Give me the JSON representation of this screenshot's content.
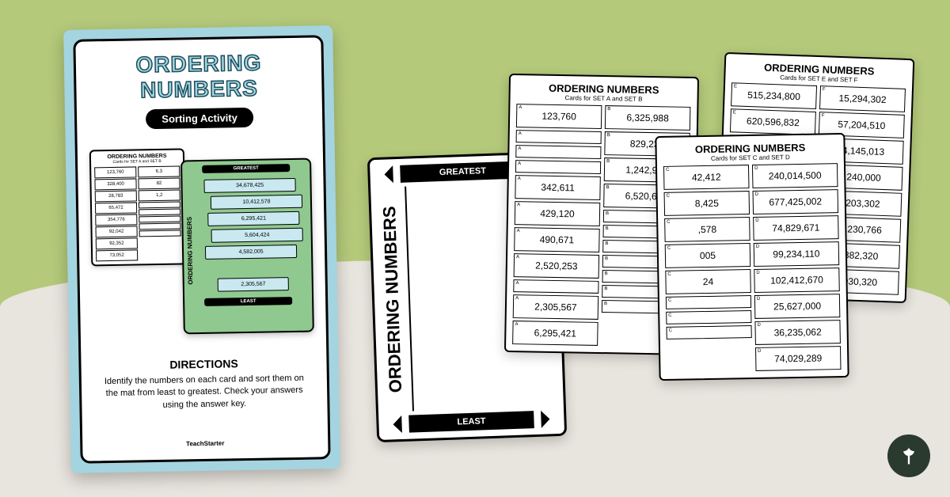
{
  "main": {
    "title": "ORDERING NUMBERS",
    "subtitle": "Sorting Activity",
    "mini_cards_title": "ORDERING NUMBERS",
    "mini_cards_sub": "Cards for SET A and SET B",
    "mini_col_a": [
      "123,760",
      "328,400",
      "28,783",
      "65,472",
      "354,776",
      "92,042",
      "92,352",
      "73,052"
    ],
    "mini_col_b": [
      "6,3",
      "82",
      "1,2",
      "",
      "",
      "",
      "",
      ""
    ],
    "mini_greatest": "GREATEST",
    "mini_least": "LEAST",
    "mini_side": "ORDERING NUMBERS",
    "mini_nums": [
      "34,678,425",
      "10,412,578",
      "6,295,421",
      "5,604,424",
      "4,582,005",
      "2,305,567"
    ],
    "directions_title": "DIRECTIONS",
    "directions_text": "Identify the numbers on each card and sort them on the mat from least to greatest. Check your answers using the answer key.",
    "brand": "TeachStarter"
  },
  "mat": {
    "greatest": "GREATEST",
    "least": "LEAST",
    "side": "ORDERING NUMBERS"
  },
  "sheets": {
    "ab": {
      "title": "ORDERING NUMBERS",
      "sub": "Cards for SET A and SET B",
      "tag_a": "A",
      "tag_b": "B",
      "col_a": [
        "123,760",
        "",
        "",
        "",
        "342,611",
        "429,120",
        "490,671",
        "2,520,253",
        "",
        "2,305,567",
        "6,295,421"
      ],
      "col_b": [
        "6,325,988",
        "829,230",
        "1,242,900",
        "6,520,600",
        "",
        "",
        "",
        "",
        "",
        "",
        ""
      ]
    },
    "cd": {
      "title": "ORDERING NUMBERS",
      "sub": "Cards for SET C and SET D",
      "tag_c": "C",
      "tag_d": "D",
      "col_c": [
        "42,412",
        "8,425",
        ",578",
        "005",
        "24",
        "",
        "",
        ""
      ],
      "col_d": [
        "240,014,500",
        "677,425,002",
        "74,829,671",
        "99,234,110",
        "102,412,670",
        "25,627,000",
        "36,235,062",
        "74,029,289"
      ]
    },
    "ef": {
      "title": "ORDERING NUMBERS",
      "sub": "Cards for SET E and SET F",
      "tag_e": "E",
      "tag_f": "F",
      "col_e": [
        "515,234,800",
        "620,596,832",
        "",
        "",
        "",
        "",
        "",
        ""
      ],
      "col_f": [
        "15,294,302",
        "57,204,510",
        "94,145,013",
        "1,240,000",
        "9,203,302",
        "90,230,766",
        "6,382,320",
        "4,930,320"
      ]
    }
  },
  "colors": {
    "bg_top": "#b4c97a",
    "bg_bottom": "#e8e4de",
    "card_blue": "#a4d4e0",
    "mat_green": "#8fc98f",
    "num_fill": "#c9e8f0",
    "badge": "#2a3a2e"
  }
}
